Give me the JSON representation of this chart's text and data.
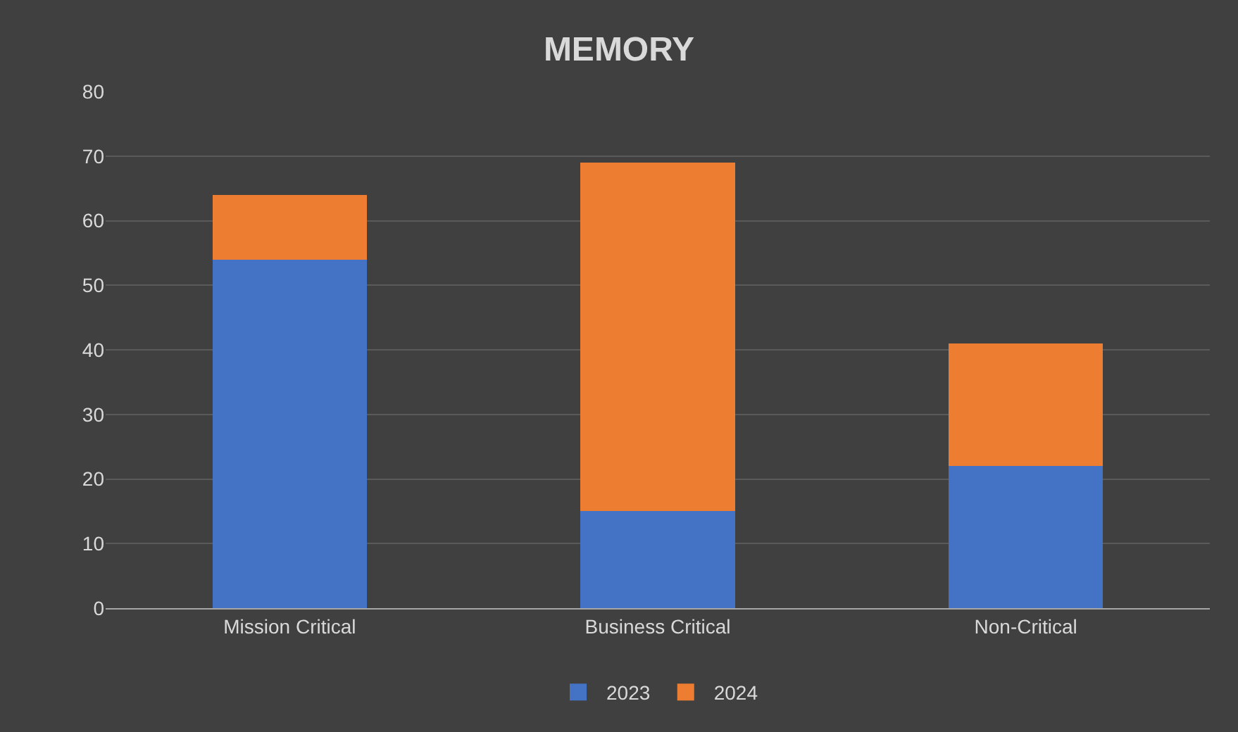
{
  "chart_data": {
    "type": "bar",
    "title": "MEMORY",
    "stacked": true,
    "categories": [
      "Mission Critical",
      "Business Critical",
      "Non-Critical"
    ],
    "series": [
      {
        "name": "2023",
        "color": "#4472c4",
        "values": [
          54,
          15,
          22
        ]
      },
      {
        "name": "2024",
        "color": "#ed7d31",
        "values": [
          10,
          54,
          19
        ]
      }
    ],
    "ylim": [
      0,
      80
    ],
    "yticks": [
      0,
      10,
      20,
      30,
      40,
      50,
      60,
      70,
      80
    ],
    "grid": "y",
    "legend": "bottom"
  }
}
